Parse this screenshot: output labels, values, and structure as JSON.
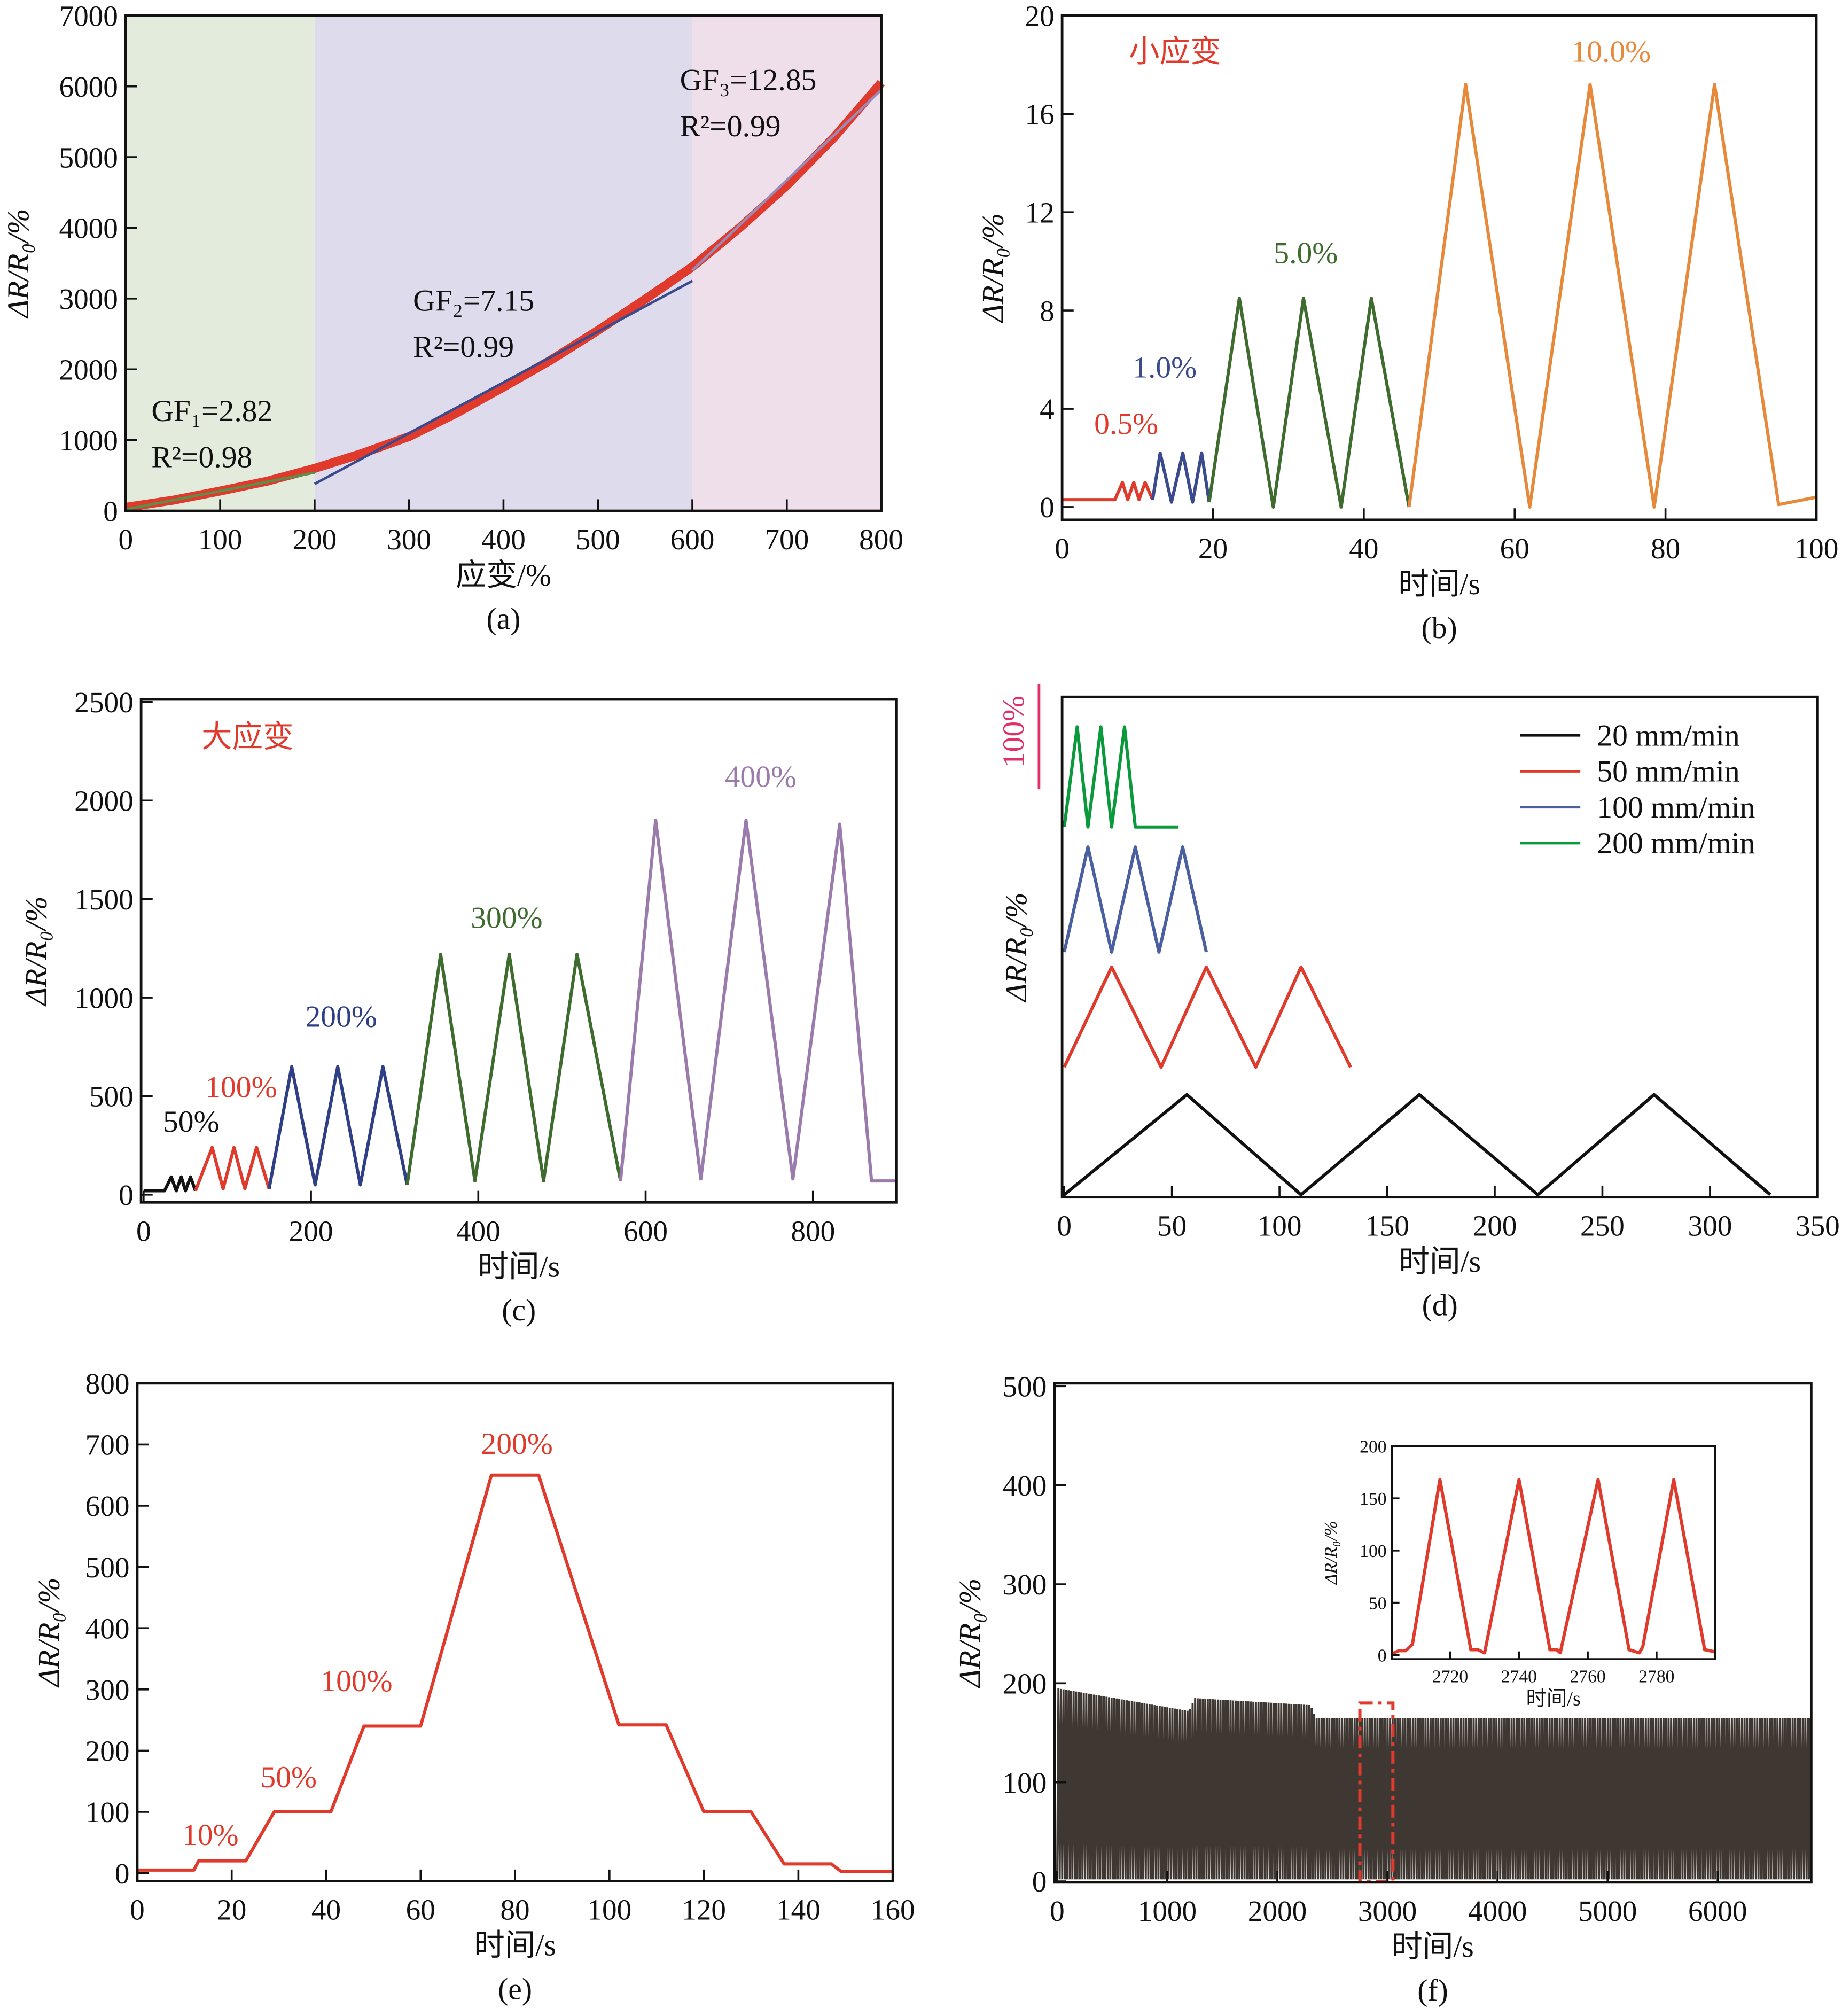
{
  "chart_data": [
    {
      "id": "a",
      "type": "line",
      "caption": "(a)",
      "xlabel": "应变/%",
      "ylabel": "ΔR/R₀/%",
      "xlim": [
        0,
        800
      ],
      "ylim": [
        0,
        7000
      ],
      "xticks": [
        0,
        100,
        200,
        300,
        400,
        500,
        600,
        700,
        800
      ],
      "yticks": [
        0,
        1000,
        2000,
        3000,
        4000,
        5000,
        6000,
        7000
      ],
      "regions": [
        {
          "x": [
            0,
            200
          ],
          "color": "#e3ecdc"
        },
        {
          "x": [
            200,
            600
          ],
          "color": "#dedcec"
        },
        {
          "x": [
            600,
            800
          ],
          "color": "#eedfea"
        }
      ],
      "series": [
        {
          "color": "#e03a2c",
          "width": 7,
          "points": [
            [
              0,
              50
            ],
            [
              50,
              150
            ],
            [
              100,
              280
            ],
            [
              150,
              420
            ],
            [
              200,
              600
            ],
            [
              250,
              810
            ],
            [
              300,
              1050
            ],
            [
              350,
              1380
            ],
            [
              400,
              1750
            ],
            [
              450,
              2130
            ],
            [
              500,
              2550
            ],
            [
              550,
              2990
            ],
            [
              600,
              3450
            ],
            [
              650,
              4000
            ],
            [
              700,
              4600
            ],
            [
              750,
              5280
            ],
            [
              800,
              6050
            ]
          ]
        },
        {
          "color": "#5b8f4a",
          "width": 2,
          "points": [
            [
              0,
              20
            ],
            [
              200,
              540
            ]
          ]
        },
        {
          "color": "#3b4a8c",
          "width": 2,
          "points": [
            [
              200,
              380
            ],
            [
              600,
              3250
            ]
          ]
        },
        {
          "color": "#9a8ab8",
          "width": 2,
          "points": [
            [
              600,
              3400
            ],
            [
              800,
              5950
            ]
          ]
        }
      ],
      "annotations": [
        {
          "text": "GF₁=2.82",
          "color": "#111"
        },
        {
          "text": "R²=0.98",
          "color": "#111"
        },
        {
          "text": "GF₂=7.15",
          "color": "#111"
        },
        {
          "text": "R²=0.99",
          "color": "#111"
        },
        {
          "text": "GF₃=12.85",
          "color": "#111"
        },
        {
          "text": "R²=0.99",
          "color": "#111"
        }
      ]
    },
    {
      "id": "b",
      "type": "line",
      "caption": "(b)",
      "xlabel": "时间/s",
      "ylabel": "ΔR/R₀/%",
      "xlim": [
        0,
        100
      ],
      "ylim": [
        0,
        20
      ],
      "xticks": [
        0,
        20,
        40,
        60,
        80,
        100
      ],
      "yticks": [
        0,
        4,
        8,
        12,
        16,
        20
      ],
      "series": [
        {
          "color": "#e03a2c",
          "width": 2.5,
          "points": [
            [
              0,
              0.3
            ],
            [
              7,
              0.3
            ],
            [
              8,
              1
            ],
            [
              8.7,
              0.3
            ],
            [
              9.5,
              1
            ],
            [
              10.2,
              0.3
            ],
            [
              11,
              1
            ],
            [
              12,
              0.3
            ]
          ]
        },
        {
          "color": "#3b4a8c",
          "width": 2.5,
          "points": [
            [
              12,
              0.3
            ],
            [
              13,
              2.2
            ],
            [
              14.5,
              0.2
            ],
            [
              16,
              2.2
            ],
            [
              17.3,
              0.2
            ],
            [
              18.5,
              2.2
            ],
            [
              19.5,
              0.2
            ]
          ]
        },
        {
          "color": "#3e6b2e",
          "width": 2.5,
          "points": [
            [
              19.5,
              0.2
            ],
            [
              23.5,
              8.5
            ],
            [
              28,
              0
            ],
            [
              32,
              8.5
            ],
            [
              37,
              0
            ],
            [
              41,
              8.5
            ],
            [
              46,
              0
            ]
          ]
        },
        {
          "color": "#e6893a",
          "width": 2.5,
          "points": [
            [
              46,
              0
            ],
            [
              53.5,
              17.2
            ],
            [
              62,
              0
            ],
            [
              70,
              17.2
            ],
            [
              78.5,
              0
            ],
            [
              86.5,
              17.2
            ],
            [
              95,
              0.1
            ],
            [
              100,
              0.4
            ]
          ]
        }
      ],
      "annotations": [
        {
          "text": "小应变",
          "color": "#e03a2c"
        },
        {
          "text": "0.5%",
          "color": "#e03a2c"
        },
        {
          "text": "1.0%",
          "color": "#3b4a8c"
        },
        {
          "text": "5.0%",
          "color": "#3e6b2e"
        },
        {
          "text": "10.0%",
          "color": "#e6893a"
        }
      ]
    },
    {
      "id": "c",
      "type": "line",
      "caption": "(c)",
      "xlabel": "时间/s",
      "ylabel": "ΔR/R₀/%",
      "xlim": [
        0,
        900
      ],
      "ylim": [
        0,
        2500
      ],
      "xticks": [
        0,
        200,
        400,
        600,
        800
      ],
      "yticks": [
        0,
        500,
        1000,
        1500,
        2000,
        2500
      ],
      "series": [
        {
          "color": "#111111",
          "width": 2.5,
          "points": [
            [
              0,
              20
            ],
            [
              25,
              20
            ],
            [
              33,
              90
            ],
            [
              39,
              20
            ],
            [
              45,
              90
            ],
            [
              50,
              20
            ],
            [
              56,
              90
            ],
            [
              62,
              20
            ]
          ]
        },
        {
          "color": "#e03a2c",
          "width": 2.5,
          "points": [
            [
              62,
              20
            ],
            [
              82,
              240
            ],
            [
              95,
              30
            ],
            [
              108,
              240
            ],
            [
              121,
              30
            ],
            [
              135,
              240
            ],
            [
              150,
              30
            ]
          ]
        },
        {
          "color": "#2f3f86",
          "width": 2.5,
          "points": [
            [
              150,
              30
            ],
            [
              177,
              650
            ],
            [
              205,
              50
            ],
            [
              232,
              650
            ],
            [
              259,
              50
            ],
            [
              286,
              650
            ],
            [
              315,
              50
            ]
          ]
        },
        {
          "color": "#3e6b2e",
          "width": 2.5,
          "points": [
            [
              315,
              50
            ],
            [
              355,
              1220
            ],
            [
              396,
              70
            ],
            [
              437,
              1220
            ],
            [
              478,
              70
            ],
            [
              518,
              1220
            ],
            [
              570,
              70
            ]
          ]
        },
        {
          "color": "#9a7bab",
          "width": 2.5,
          "points": [
            [
              570,
              70
            ],
            [
              612,
              1900
            ],
            [
              666,
              80
            ],
            [
              720,
              1900
            ],
            [
              776,
              80
            ],
            [
              832,
              1880
            ],
            [
              870,
              70
            ],
            [
              900,
              70
            ]
          ]
        }
      ],
      "annotations": [
        {
          "text": "大应变",
          "color": "#e03a2c"
        },
        {
          "text": "50%",
          "color": "#111111"
        },
        {
          "text": "100%",
          "color": "#e03a2c"
        },
        {
          "text": "200%",
          "color": "#2f3f86"
        },
        {
          "text": "300%",
          "color": "#3e6b2e"
        },
        {
          "text": "400%",
          "color": "#9a7bab"
        }
      ]
    },
    {
      "id": "d",
      "type": "line",
      "caption": "(d)",
      "xlabel": "时间/s",
      "ylabel": "ΔR/R₀/%",
      "xlim": [
        0,
        350
      ],
      "ylim": [
        0,
        10
      ],
      "xticks": [
        0,
        50,
        100,
        150,
        200,
        250,
        300,
        350
      ],
      "yticks": [],
      "scale_bar": {
        "label": "100%",
        "color": "#e0306a"
      },
      "legend": {
        "position": "top-right"
      },
      "series": [
        {
          "name": "20 mm/min",
          "color": "#111111",
          "width": 2.5,
          "points": [
            [
              0,
              0.05
            ],
            [
              57,
              2.05
            ],
            [
              110,
              0.05
            ],
            [
              165,
              2.05
            ],
            [
              220,
              0.05
            ],
            [
              274,
              2.05
            ],
            [
              328,
              0.05
            ]
          ]
        },
        {
          "name": "50 mm/min",
          "color": "#e03a2c",
          "width": 2.5,
          "points": [
            [
              0,
              2.6
            ],
            [
              22,
              4.6
            ],
            [
              45,
              2.6
            ],
            [
              66,
              4.6
            ],
            [
              89,
              2.6
            ],
            [
              110,
              4.6
            ],
            [
              133,
              2.6
            ]
          ]
        },
        {
          "name": "100 mm/min",
          "color": "#4a5fa0",
          "width": 2.5,
          "points": [
            [
              0,
              4.9
            ],
            [
              11,
              7
            ],
            [
              22,
              4.9
            ],
            [
              33,
              7
            ],
            [
              44,
              4.9
            ],
            [
              55,
              7
            ],
            [
              66,
              4.9
            ]
          ]
        },
        {
          "name": "200 mm/min",
          "color": "#0a9a3c",
          "width": 2.5,
          "points": [
            [
              0,
              7.4
            ],
            [
              6,
              9.4
            ],
            [
              11,
              7.4
            ],
            [
              17,
              9.4
            ],
            [
              22,
              7.4
            ],
            [
              28,
              9.4
            ],
            [
              33,
              7.4
            ],
            [
              53,
              7.4
            ]
          ]
        }
      ]
    },
    {
      "id": "e",
      "type": "line",
      "caption": "(e)",
      "xlabel": "时间/s",
      "ylabel": "ΔR/R₀/%",
      "xlim": [
        0,
        160
      ],
      "ylim": [
        0,
        800
      ],
      "xticks": [
        0,
        20,
        40,
        60,
        80,
        100,
        120,
        140,
        160
      ],
      "yticks": [
        0,
        100,
        200,
        300,
        400,
        500,
        600,
        700,
        800
      ],
      "series": [
        {
          "color": "#e03a2c",
          "width": 2.5,
          "points": [
            [
              0,
              5
            ],
            [
              12,
              5
            ],
            [
              13,
              20
            ],
            [
              23,
              20
            ],
            [
              29,
              100
            ],
            [
              41,
              100
            ],
            [
              48,
              240
            ],
            [
              60,
              240
            ],
            [
              75,
              650
            ],
            [
              85,
              650
            ],
            [
              102,
              242
            ],
            [
              112,
              242
            ],
            [
              120,
              100
            ],
            [
              130,
              100
            ],
            [
              137,
              15
            ],
            [
              147,
              15
            ],
            [
              149,
              3
            ],
            [
              160,
              3
            ]
          ]
        }
      ],
      "annotations": [
        {
          "text": "10%",
          "color": "#e03a2c"
        },
        {
          "text": "50%",
          "color": "#e03a2c"
        },
        {
          "text": "100%",
          "color": "#e03a2c"
        },
        {
          "text": "200%",
          "color": "#e03a2c"
        }
      ]
    },
    {
      "id": "f",
      "type": "line",
      "caption": "(f)",
      "xlabel": "时间/s",
      "ylabel": "ΔR/R₀/%",
      "xlim": [
        0,
        6850
      ],
      "ylim": [
        0,
        500
      ],
      "xticks": [
        0,
        1000,
        2000,
        3000,
        4000,
        5000,
        6000
      ],
      "yticks": [
        0,
        100,
        200,
        300,
        400,
        500
      ],
      "dense_cycles": {
        "color": "#2a211c",
        "cycle_period_s": 23,
        "trough": 2,
        "peak_envelope": [
          [
            0,
            195
          ],
          [
            1200,
            172
          ],
          [
            1250,
            185
          ],
          [
            2300,
            178
          ],
          [
            2350,
            165
          ],
          [
            6850,
            165
          ]
        ]
      },
      "highlight_box": {
        "x": [
          2750,
          3050
        ],
        "y": [
          0,
          180
        ],
        "color": "#e03a2c"
      },
      "inset": {
        "xlabel": "时间/s",
        "ylabel": "ΔR/R₀/%",
        "xlim": [
          2703,
          2797
        ],
        "ylim": [
          0,
          200
        ],
        "xticks": [
          2720,
          2740,
          2760,
          2780
        ],
        "yticks": [
          0,
          50,
          100,
          150,
          200
        ],
        "series": [
          {
            "color": "#e03a2c",
            "width": 2.5,
            "points": [
              [
                2703,
                1
              ],
              [
                2705,
                4
              ],
              [
                2707,
                4
              ],
              [
                2709,
                10
              ],
              [
                2717,
                168
              ],
              [
                2726,
                5
              ],
              [
                2728,
                5
              ],
              [
                2730,
                2
              ],
              [
                2740,
                168
              ],
              [
                2749,
                5
              ],
              [
                2751,
                5
              ],
              [
                2752,
                2
              ],
              [
                2763,
                168
              ],
              [
                2772,
                5
              ],
              [
                2775,
                2
              ],
              [
                2776,
                8
              ],
              [
                2785,
                168
              ],
              [
                2794,
                5
              ],
              [
                2797,
                3
              ]
            ]
          }
        ]
      }
    }
  ]
}
